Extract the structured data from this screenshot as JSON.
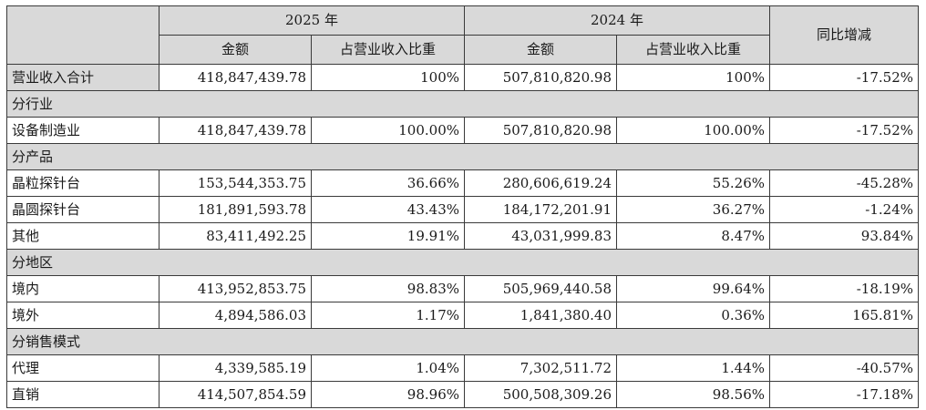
{
  "header": {
    "year_2025": "2025 年",
    "year_2024": "2024 年",
    "yoy": "同比增减",
    "amount": "金额",
    "share": "占营业收入比重"
  },
  "total": {
    "label": "营业收入合计",
    "amt_2025": "418,847,439.78",
    "pct_2025": "100%",
    "amt_2024": "507,810,820.98",
    "pct_2024": "100%",
    "yoy": "-17.52%"
  },
  "sections": [
    {
      "title": "分行业",
      "rows": [
        {
          "label": "设备制造业",
          "amt_2025": "418,847,439.78",
          "pct_2025": "100.00%",
          "amt_2024": "507,810,820.98",
          "pct_2024": "100.00%",
          "yoy": "-17.52%"
        }
      ]
    },
    {
      "title": "分产品",
      "rows": [
        {
          "label": "晶粒探针台",
          "amt_2025": "153,544,353.75",
          "pct_2025": "36.66%",
          "amt_2024": "280,606,619.24",
          "pct_2024": "55.26%",
          "yoy": "-45.28%"
        },
        {
          "label": "晶圆探针台",
          "amt_2025": "181,891,593.78",
          "pct_2025": "43.43%",
          "amt_2024": "184,172,201.91",
          "pct_2024": "36.27%",
          "yoy": "-1.24%"
        },
        {
          "label": "其他",
          "amt_2025": "83,411,492.25",
          "pct_2025": "19.91%",
          "amt_2024": "43,031,999.83",
          "pct_2024": "8.47%",
          "yoy": "93.84%"
        }
      ]
    },
    {
      "title": "分地区",
      "rows": [
        {
          "label": "境内",
          "amt_2025": "413,952,853.75",
          "pct_2025": "98.83%",
          "amt_2024": "505,969,440.58",
          "pct_2024": "99.64%",
          "yoy": "-18.19%"
        },
        {
          "label": "境外",
          "amt_2025": "4,894,586.03",
          "pct_2025": "1.17%",
          "amt_2024": "1,841,380.40",
          "pct_2024": "0.36%",
          "yoy": "165.81%"
        }
      ]
    },
    {
      "title": "分销售模式",
      "rows": [
        {
          "label": "代理",
          "amt_2025": "4,339,585.19",
          "pct_2025": "1.04%",
          "amt_2024": "7,302,511.72",
          "pct_2024": "1.44%",
          "yoy": "-40.57%"
        },
        {
          "label": "直销",
          "amt_2025": "414,507,854.59",
          "pct_2025": "98.96%",
          "amt_2024": "500,508,309.26",
          "pct_2024": "98.56%",
          "yoy": "-17.18%"
        }
      ]
    }
  ]
}
